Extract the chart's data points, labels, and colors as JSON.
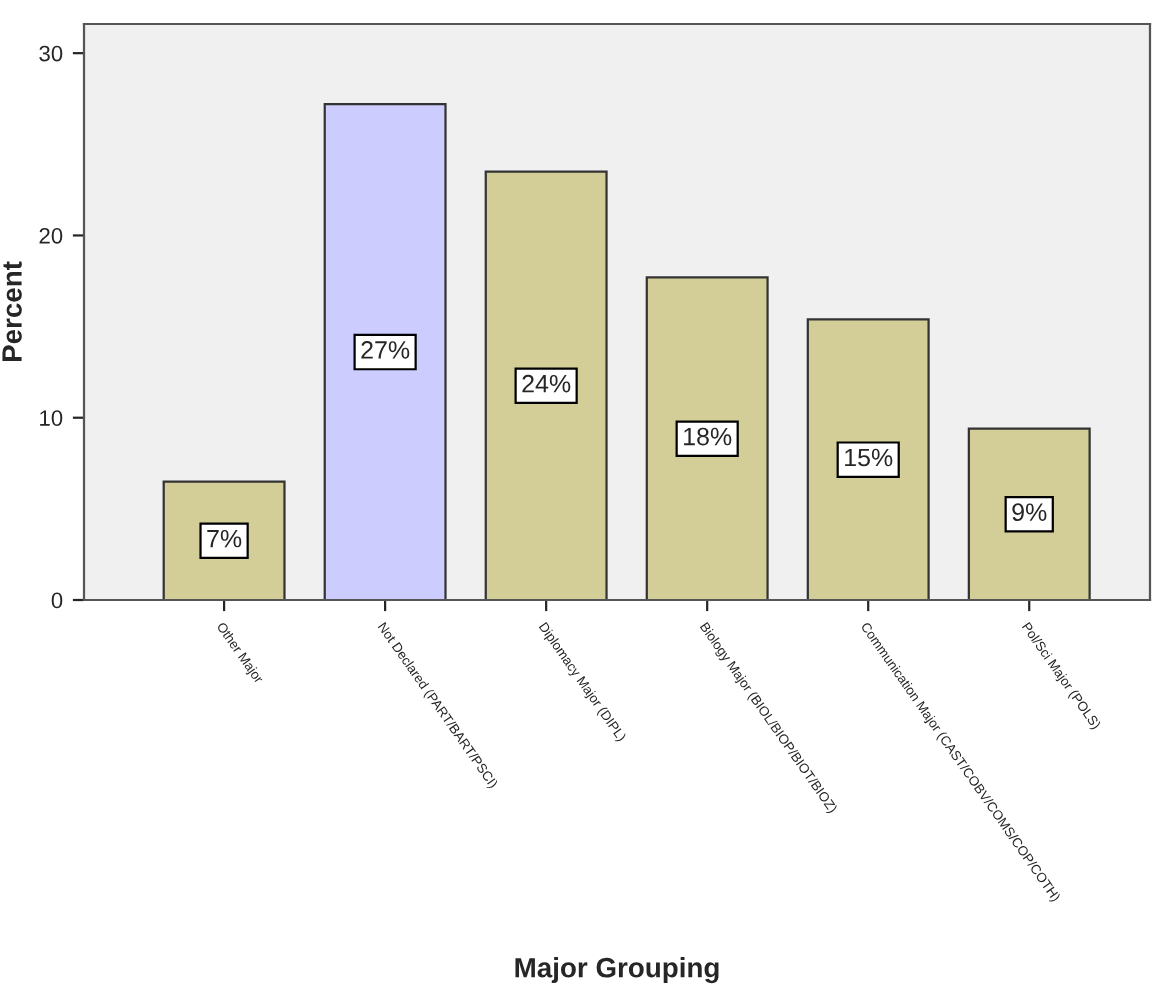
{
  "chart_data": {
    "type": "bar",
    "xlabel": "Major Grouping",
    "ylabel": "Percent",
    "categories": [
      "Other Major",
      "Not Declared (PART/BART/PSCI)",
      "Diplomacy Major (DIPL)",
      "Biology Major (BIOL/BIOP/BIOT/BIOZ)",
      "Communication Major (CAST/COBV/COMS/COP/COTH)",
      "Pol/Sci Major (POLS)"
    ],
    "values": [
      6.5,
      27.2,
      23.5,
      17.7,
      15.4,
      9.4
    ],
    "value_labels": [
      "7%",
      "27%",
      "24%",
      "18%",
      "15%",
      "9%"
    ],
    "colors": [
      "#d3ce98",
      "#ccccff",
      "#d3ce98",
      "#d3ce98",
      "#d3ce98",
      "#d3ce98"
    ],
    "ylim": [
      0,
      31.6
    ],
    "yticks": [
      0,
      10,
      20,
      30
    ],
    "grid": false,
    "legend": false
  }
}
